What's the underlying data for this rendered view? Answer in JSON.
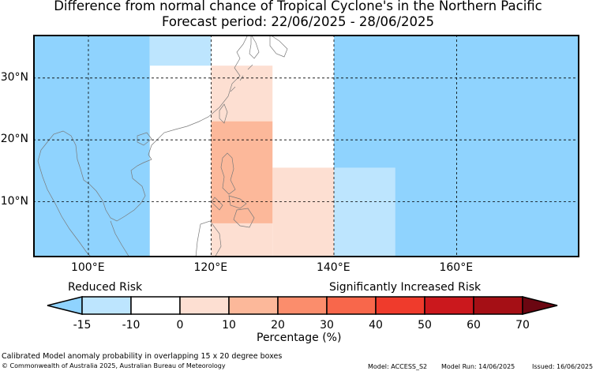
{
  "title": {
    "line1": "Difference from normal chance of Tropical Cyclone's in the Northern Pacific",
    "line2": "Forecast period: 22/06/2025 - 28/06/2025"
  },
  "map": {
    "lon_range": [
      91,
      180
    ],
    "lat_range": [
      1,
      37
    ],
    "lat_ticks": [
      {
        "value": 30,
        "label": "30°N"
      },
      {
        "value": 20,
        "label": "20°N"
      },
      {
        "value": 10,
        "label": "10°N"
      }
    ],
    "lon_ticks": [
      {
        "value": 100,
        "label": "100°E"
      },
      {
        "value": 120,
        "label": "120°E"
      },
      {
        "value": 140,
        "label": "140°E"
      },
      {
        "value": 160,
        "label": "160°E"
      }
    ],
    "cells": [
      {
        "lon0": 91,
        "lon1": 110,
        "lat0": 1,
        "lat1": 37,
        "level": -20
      },
      {
        "lon0": 140,
        "lon1": 180,
        "lat0": 1,
        "lat1": 37,
        "level": -20
      },
      {
        "lon0": 110,
        "lon1": 120,
        "lat0": 32,
        "lat1": 37,
        "level": -12
      },
      {
        "lon0": 140,
        "lon1": 150,
        "lat0": 1,
        "lat1": 15.5,
        "level": -12
      },
      {
        "lon0": 120,
        "lon1": 130,
        "lat0": 23,
        "lat1": 32,
        "level": 5
      },
      {
        "lon0": 120,
        "lon1": 130,
        "lat0": 1,
        "lat1": 6.5,
        "level": 5
      },
      {
        "lon0": 130,
        "lon1": 140,
        "lat0": 1,
        "lat1": 15.5,
        "level": 5
      },
      {
        "lon0": 120,
        "lon1": 130,
        "lat0": 6.5,
        "lat1": 23,
        "level": 15
      }
    ]
  },
  "colorbar": {
    "left_title": "Reduced Risk",
    "right_title": "Significantly Increased Risk",
    "xlabel": "Percentage (%)",
    "tick_labels": [
      "-15",
      "-10",
      "0",
      "10",
      "20",
      "30",
      "40",
      "50",
      "60",
      "70"
    ],
    "colors": {
      "under": "#8fd3fe",
      "bins": [
        "#bde5fe",
        "#ffffff",
        "#fddfd2",
        "#fcb89a",
        "#fb8d6c",
        "#f8674b",
        "#ef3b2c",
        "#cb181d",
        "#a50f15"
      ],
      "over": "#6b0611"
    }
  },
  "colors": {
    "ocean_reduced": "#8fd3fe",
    "coast": "#7a7a7a"
  },
  "footer": {
    "description": "Calibrated Model anomaly probability in overlapping 15 x 20 degree boxes",
    "copyright": "© Commonwealth of Australia 2025, Australian Bureau of Meteorology",
    "model": "Model: ACCESS_S2",
    "model_run": "Model Run: 14/06/2025",
    "issued": "Issued: 16/06/2025"
  }
}
